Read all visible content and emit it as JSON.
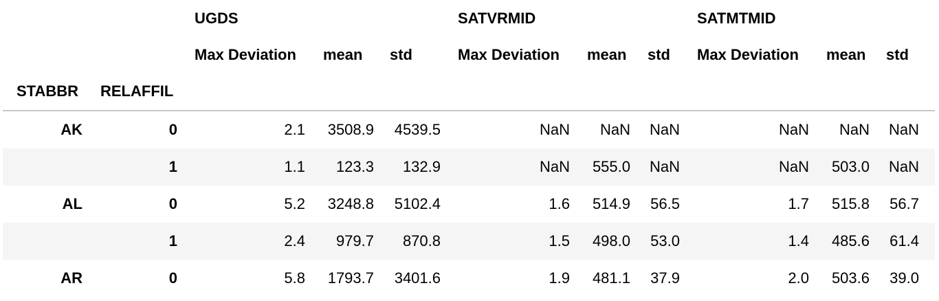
{
  "column_groups": [
    "UGDS",
    "SATVRMID",
    "SATMTMID"
  ],
  "sub_headers": [
    "Max Deviation",
    "mean",
    "std",
    "Max Deviation",
    "mean",
    "std",
    "Max Deviation",
    "mean",
    "std"
  ],
  "index_names": [
    "STABBR",
    "RELAFFIL"
  ],
  "rows": [
    {
      "stabbr": "AK",
      "relaffil": "0",
      "values": [
        "2.1",
        "3508.9",
        "4539.5",
        "NaN",
        "NaN",
        "NaN",
        "NaN",
        "NaN",
        "NaN"
      ]
    },
    {
      "stabbr": "",
      "relaffil": "1",
      "values": [
        "1.1",
        "123.3",
        "132.9",
        "NaN",
        "555.0",
        "NaN",
        "NaN",
        "503.0",
        "NaN"
      ]
    },
    {
      "stabbr": "AL",
      "relaffil": "0",
      "values": [
        "5.2",
        "3248.8",
        "5102.4",
        "1.6",
        "514.9",
        "56.5",
        "1.7",
        "515.8",
        "56.7"
      ]
    },
    {
      "stabbr": "",
      "relaffil": "1",
      "values": [
        "2.4",
        "979.7",
        "870.8",
        "1.5",
        "498.0",
        "53.0",
        "1.4",
        "485.6",
        "61.4"
      ]
    },
    {
      "stabbr": "AR",
      "relaffil": "0",
      "values": [
        "5.8",
        "1793.7",
        "3401.6",
        "1.9",
        "481.1",
        "37.9",
        "2.0",
        "503.6",
        "39.0"
      ]
    }
  ]
}
